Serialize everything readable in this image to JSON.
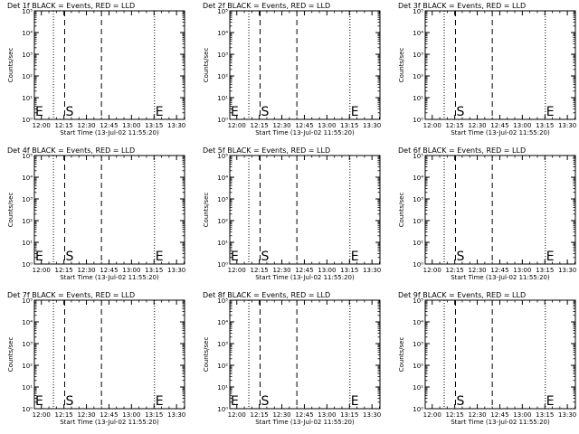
{
  "chart_data": [
    {
      "type": "line",
      "title": "Det 1f BLACK = Events, RED = LLD",
      "xlabel": "Start Time (13-Jul-02 11:55:20)",
      "ylabel": "Counts/sec",
      "x_ticks": [
        "12:00",
        "12:15",
        "12:30",
        "12:45",
        "13:00",
        "13:15",
        "13:30"
      ],
      "x_range": [
        "11:55:20",
        "13:35:20"
      ],
      "y_scale": "log",
      "y_ticks": [
        "10⁰",
        "10¹",
        "10²",
        "10³",
        "10⁴",
        "10⁵"
      ],
      "ylim": [
        1,
        100000
      ],
      "markers": [
        {
          "label": "E",
          "time": "11:55:20"
        },
        {
          "label": "S",
          "time": "12:15:30"
        },
        {
          "label": "E",
          "time": "13:15:20"
        }
      ],
      "vlines_dotted": [
        "12:08:00",
        "13:15:20"
      ],
      "vlines_dashed": [
        "12:15:30",
        "12:40:00"
      ],
      "series": []
    },
    {
      "type": "line",
      "title": "Det 2f BLACK = Events, RED = LLD",
      "xlabel": "Start Time (13-Jul-02 11:55:20)",
      "ylabel": "Counts/sec",
      "x_ticks": [
        "12:00",
        "12:15",
        "12:30",
        "12:45",
        "13:00",
        "13:15",
        "13:30"
      ],
      "x_range": [
        "11:55:20",
        "13:35:20"
      ],
      "y_scale": "log",
      "y_ticks": [
        "10⁰",
        "10¹",
        "10²",
        "10³",
        "10⁴",
        "10⁵"
      ],
      "ylim": [
        1,
        100000
      ],
      "markers": [
        {
          "label": "E",
          "time": "11:55:20"
        },
        {
          "label": "S",
          "time": "12:15:30"
        },
        {
          "label": "E",
          "time": "13:15:20"
        }
      ],
      "vlines_dotted": [
        "12:08:00",
        "13:15:20"
      ],
      "vlines_dashed": [
        "12:15:30",
        "12:40:00"
      ],
      "series": []
    },
    {
      "type": "line",
      "title": "Det 3f BLACK = Events, RED = LLD",
      "xlabel": "Start Time (13-Jul-02 11:55:20)",
      "ylabel": "Counts/sec",
      "x_ticks": [
        "12:00",
        "12:15",
        "12:30",
        "12:45",
        "13:00",
        "13:15",
        "13:30"
      ],
      "x_range": [
        "11:55:20",
        "13:35:20"
      ],
      "y_scale": "log",
      "y_ticks": [
        "10⁰",
        "10¹",
        "10²",
        "10³",
        "10⁴",
        "10⁵"
      ],
      "ylim": [
        1,
        100000
      ],
      "markers": [
        {
          "label": "S",
          "time": "12:15:30"
        },
        {
          "label": "E",
          "time": "13:15:20"
        }
      ],
      "vlines_dotted": [
        "12:08:00",
        "13:15:20"
      ],
      "vlines_dashed": [
        "12:15:30",
        "12:40:00"
      ],
      "series": []
    },
    {
      "type": "line",
      "title": "Det 4f BLACK = Events, RED = LLD",
      "xlabel": "Start Time (13-Jul-02 11:55:20)",
      "ylabel": "Counts/sec",
      "x_ticks": [
        "12:00",
        "12:15",
        "12:30",
        "12:45",
        "13:00",
        "13:15",
        "13:30"
      ],
      "x_range": [
        "11:55:20",
        "13:35:20"
      ],
      "y_scale": "log",
      "y_ticks": [
        "10⁰",
        "10¹",
        "10²",
        "10³",
        "10⁴",
        "10⁵"
      ],
      "ylim": [
        1,
        100000
      ],
      "markers": [
        {
          "label": "E",
          "time": "11:55:20"
        },
        {
          "label": "S",
          "time": "12:15:30"
        },
        {
          "label": "E",
          "time": "13:15:20"
        }
      ],
      "vlines_dotted": [
        "12:08:00",
        "13:15:20"
      ],
      "vlines_dashed": [
        "12:15:30",
        "12:40:00"
      ],
      "series": []
    },
    {
      "type": "line",
      "title": "Det 5f BLACK = Events, RED = LLD",
      "xlabel": "Start Time (13-Jul-02 11:55:20)",
      "ylabel": "Counts/sec",
      "x_ticks": [
        "12:00",
        "12:15",
        "12:30",
        "12:45",
        "13:00",
        "13:15",
        "13:30"
      ],
      "x_range": [
        "11:55:20",
        "13:35:20"
      ],
      "y_scale": "log",
      "y_ticks": [
        "10⁰",
        "10¹",
        "10²",
        "10³",
        "10⁴",
        "10⁵"
      ],
      "ylim": [
        1,
        100000
      ],
      "markers": [
        {
          "label": "E",
          "time": "11:55:20"
        },
        {
          "label": "S",
          "time": "12:15:30"
        },
        {
          "label": "E",
          "time": "13:15:20"
        }
      ],
      "vlines_dotted": [
        "12:08:00",
        "13:15:20"
      ],
      "vlines_dashed": [
        "12:15:30",
        "12:40:00"
      ],
      "series": []
    },
    {
      "type": "line",
      "title": "Det 6f BLACK = Events, RED = LLD",
      "xlabel": "Start Time (13-Jul-02 11:55:20)",
      "ylabel": "Counts/sec",
      "x_ticks": [
        "12:00",
        "12:15",
        "12:30",
        "12:45",
        "13:00",
        "13:15",
        "13:30"
      ],
      "x_range": [
        "11:55:20",
        "13:35:20"
      ],
      "y_scale": "log",
      "y_ticks": [
        "10⁰",
        "10¹",
        "10²",
        "10³",
        "10⁴",
        "10⁵"
      ],
      "ylim": [
        1,
        100000
      ],
      "markers": [
        {
          "label": "S",
          "time": "12:15:30"
        },
        {
          "label": "E",
          "time": "13:15:20"
        }
      ],
      "vlines_dotted": [
        "12:08:00",
        "13:15:20"
      ],
      "vlines_dashed": [
        "12:15:30",
        "12:40:00"
      ],
      "series": []
    },
    {
      "type": "line",
      "title": "Det 7f BLACK = Events, RED = LLD",
      "xlabel": "Start Time (13-Jul-02 11:55:20)",
      "ylabel": "Counts/sec",
      "x_ticks": [
        "12:00",
        "12:15",
        "12:30",
        "12:45",
        "13:00",
        "13:15",
        "13:30"
      ],
      "x_range": [
        "11:55:20",
        "13:35:20"
      ],
      "y_scale": "log",
      "y_ticks": [
        "10⁰",
        "10¹",
        "10²",
        "10³",
        "10⁴",
        "10⁵"
      ],
      "ylim": [
        1,
        100000
      ],
      "markers": [
        {
          "label": "E",
          "time": "11:55:20"
        },
        {
          "label": "S",
          "time": "12:15:30"
        },
        {
          "label": "E",
          "time": "13:15:20"
        }
      ],
      "vlines_dotted": [
        "12:08:00",
        "13:15:20"
      ],
      "vlines_dashed": [
        "12:15:30",
        "12:40:00"
      ],
      "series": []
    },
    {
      "type": "line",
      "title": "Det 8f BLACK = Events, RED = LLD",
      "xlabel": "Start Time (13-Jul-02 11:55:20)",
      "ylabel": "Counts/sec",
      "x_ticks": [
        "12:00",
        "12:15",
        "12:30",
        "12:45",
        "13:00",
        "13:15",
        "13:30"
      ],
      "x_range": [
        "11:55:20",
        "13:35:20"
      ],
      "y_scale": "log",
      "y_ticks": [
        "10⁰",
        "10¹",
        "10²",
        "10³",
        "10⁴",
        "10⁵"
      ],
      "ylim": [
        1,
        100000
      ],
      "markers": [
        {
          "label": "E",
          "time": "11:55:20"
        },
        {
          "label": "S",
          "time": "12:15:30"
        },
        {
          "label": "E",
          "time": "13:15:20"
        }
      ],
      "vlines_dotted": [
        "12:08:00",
        "13:15:20"
      ],
      "vlines_dashed": [
        "12:15:30",
        "12:40:00"
      ],
      "series": []
    },
    {
      "type": "line",
      "title": "Det 9f BLACK = Events, RED = LLD",
      "xlabel": "Start Time (13-Jul-02 11:55:20)",
      "ylabel": "Counts/sec",
      "x_ticks": [
        "12:00",
        "12:15",
        "12:30",
        "12:45",
        "13:00",
        "13:15",
        "13:30"
      ],
      "x_range": [
        "11:55:20",
        "13:35:20"
      ],
      "y_scale": "log",
      "y_ticks": [
        "10⁰",
        "10¹",
        "10²",
        "10³",
        "10⁴",
        "10⁵"
      ],
      "ylim": [
        1,
        100000
      ],
      "markers": [
        {
          "label": "S",
          "time": "12:15:30"
        },
        {
          "label": "E",
          "time": "13:15:20"
        }
      ],
      "vlines_dotted": [
        "12:08:00",
        "13:15:20"
      ],
      "vlines_dashed": [
        "12:15:30",
        "12:40:00"
      ],
      "series": []
    }
  ]
}
